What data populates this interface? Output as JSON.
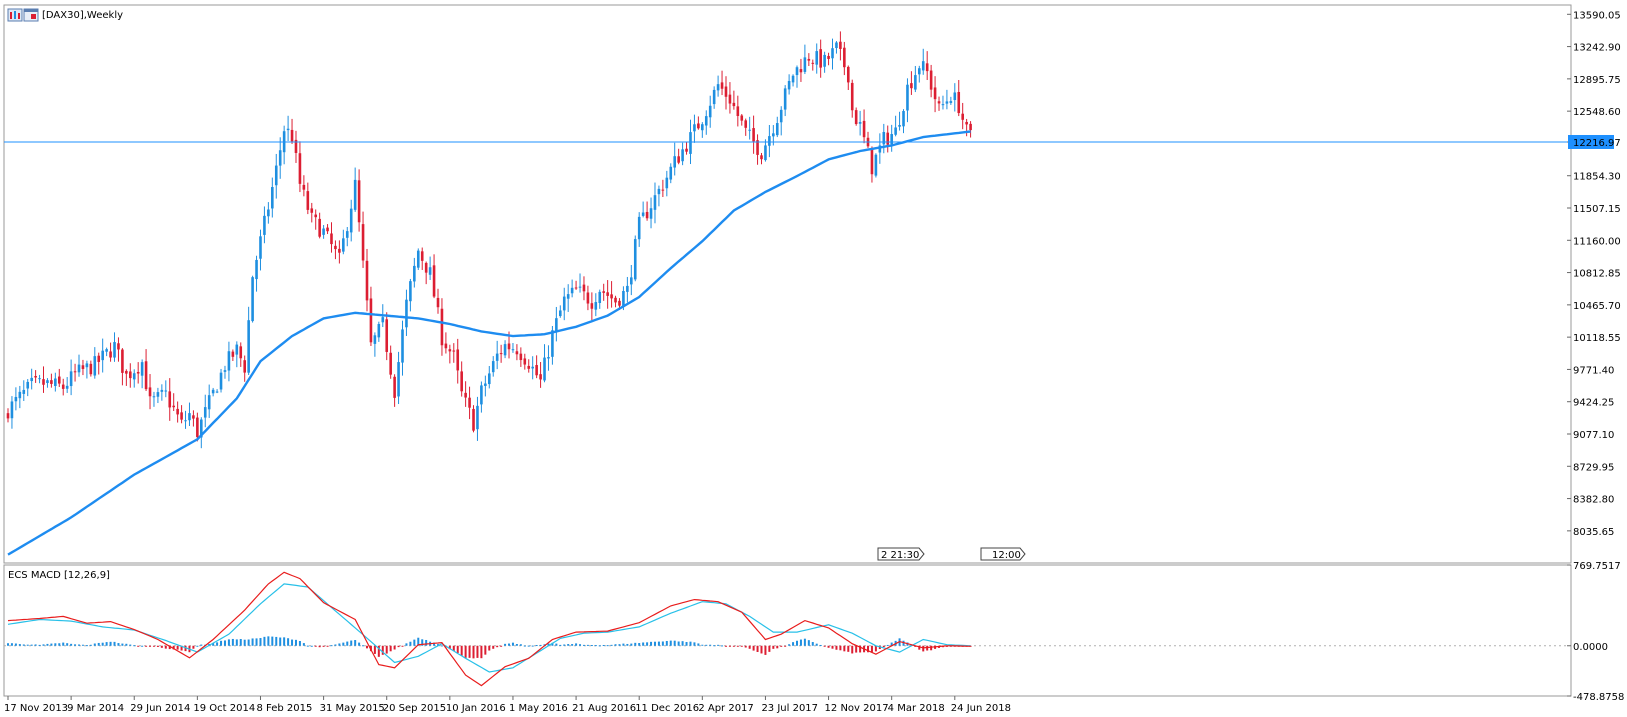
{
  "main_panel": {
    "title": "[DAX30],Weekly",
    "current_price_label": "12216.97",
    "time_tags": [
      "2 21:30",
      "12:00"
    ]
  },
  "indicator_panel": {
    "title": "ECS MACD [12,26,9]"
  },
  "colors": {
    "bull": "#1e8fe0",
    "bear": "#dc1e32",
    "moving_average": "#1e8cf0",
    "macd_line": "#e81c1c",
    "signal_line": "#28c0e8",
    "price_line": "#1e90ff",
    "frame": "#9a9a9a",
    "background": "#ffffff"
  },
  "chart_data": [
    {
      "type": "candlestick",
      "title": "[DAX30],Weekly",
      "ylim": [
        7690,
        13690
      ],
      "yticks": [
        "13590.05",
        "13242.90",
        "12895.75",
        "12548.60",
        "12216.97",
        "11854.30",
        "11507.15",
        "11160.00",
        "10812.85",
        "10465.70",
        "10118.55",
        "9771.40",
        "9424.25",
        "9077.10",
        "8729.95",
        "8382.80",
        "8035.65"
      ],
      "ytick_values": [
        13590.05,
        13242.9,
        12895.75,
        12548.6,
        12216.97,
        11854.3,
        11507.15,
        11160.0,
        10812.85,
        10465.7,
        10118.55,
        9771.4,
        9424.25,
        9077.1,
        8729.95,
        8382.8,
        8035.65
      ],
      "xticks": [
        "17 Nov 2013",
        "9 Mar 2014",
        "29 Jun 2014",
        "19 Oct 2014",
        "8 Feb 2015",
        "31 May 2015",
        "20 Sep 2015",
        "10 Jan 2016",
        "1 May 2016",
        "21 Aug 2016",
        "11 Dec 2016",
        "2 Apr 2017",
        "23 Jul 2017",
        "12 Nov 2017",
        "4 Mar 2018",
        "24 Jun 2018"
      ],
      "xtick_bar_index": [
        0,
        16,
        32,
        48,
        64,
        80,
        96,
        112,
        128,
        144,
        160,
        176,
        192,
        208,
        224,
        240
      ],
      "price_line": 12216.97,
      "close_path": [
        [
          0,
          9340
        ],
        [
          6,
          9600
        ],
        [
          9,
          9620
        ],
        [
          14,
          9580
        ],
        [
          17,
          9720
        ],
        [
          22,
          9820
        ],
        [
          27,
          10020
        ],
        [
          30,
          9700
        ],
        [
          34,
          9850
        ],
        [
          36,
          9410
        ],
        [
          40,
          9500
        ],
        [
          44,
          9180
        ],
        [
          46,
          9290
        ],
        [
          48,
          9100
        ],
        [
          52,
          9510
        ],
        [
          55,
          9820
        ],
        [
          58,
          9980
        ],
        [
          60,
          9800
        ],
        [
          62,
          10780
        ],
        [
          66,
          11520
        ],
        [
          68,
          11920
        ],
        [
          70,
          12360
        ],
        [
          72,
          12280
        ],
        [
          74,
          11760
        ],
        [
          77,
          11380
        ],
        [
          80,
          11250
        ],
        [
          84,
          10940
        ],
        [
          88,
          11750
        ],
        [
          92,
          10020
        ],
        [
          95,
          10250
        ],
        [
          98,
          9550
        ],
        [
          101,
          10470
        ],
        [
          104,
          11050
        ],
        [
          107,
          10800
        ],
        [
          110,
          10120
        ],
        [
          113,
          9900
        ],
        [
          115,
          9500
        ],
        [
          118,
          9200
        ],
        [
          120,
          9530
        ],
        [
          124,
          9920
        ],
        [
          126,
          10030
        ],
        [
          129,
          10000
        ],
        [
          132,
          9850
        ],
        [
          135,
          9640
        ],
        [
          138,
          10150
        ],
        [
          141,
          10510
        ],
        [
          144,
          10620
        ],
        [
          148,
          10510
        ],
        [
          150,
          10640
        ],
        [
          154,
          10510
        ],
        [
          157,
          10620
        ],
        [
          160,
          11320
        ],
        [
          164,
          11620
        ],
        [
          166,
          11760
        ],
        [
          169,
          12000
        ],
        [
          173,
          12260
        ],
        [
          176,
          12480
        ],
        [
          180,
          12830
        ],
        [
          183,
          12680
        ],
        [
          187,
          12320
        ],
        [
          191,
          12110
        ],
        [
          195,
          12490
        ],
        [
          199,
          12950
        ],
        [
          203,
          13140
        ],
        [
          207,
          13070
        ],
        [
          210,
          13220
        ],
        [
          213,
          12950
        ],
        [
          214,
          12560
        ],
        [
          216,
          12380
        ],
        [
          219,
          11950
        ],
        [
          222,
          12240
        ],
        [
          225,
          12330
        ],
        [
          228,
          12800
        ],
        [
          231,
          13050
        ],
        [
          233,
          12960
        ],
        [
          236,
          12560
        ],
        [
          239,
          12730
        ],
        [
          241,
          12610
        ],
        [
          243,
          12320
        ],
        [
          244,
          12280
        ]
      ],
      "n_bars": 245,
      "series": [
        {
          "name": "",
          "kind": "moving_average",
          "path": [
            [
              0,
              7780
            ],
            [
              16,
              8180
            ],
            [
              32,
              8640
            ],
            [
              48,
              9020
            ],
            [
              58,
              9460
            ],
            [
              64,
              9860
            ],
            [
              72,
              10130
            ],
            [
              80,
              10320
            ],
            [
              88,
              10380
            ],
            [
              96,
              10350
            ],
            [
              104,
              10320
            ],
            [
              112,
              10260
            ],
            [
              120,
              10180
            ],
            [
              128,
              10130
            ],
            [
              136,
              10150
            ],
            [
              144,
              10230
            ],
            [
              152,
              10350
            ],
            [
              160,
              10550
            ],
            [
              168,
              10860
            ],
            [
              176,
              11150
            ],
            [
              184,
              11480
            ],
            [
              192,
              11680
            ],
            [
              200,
              11850
            ],
            [
              208,
              12030
            ],
            [
              216,
              12120
            ],
            [
              224,
              12180
            ],
            [
              232,
              12270
            ],
            [
              240,
              12310
            ],
            [
              244,
              12330
            ]
          ]
        }
      ]
    },
    {
      "type": "macd",
      "title": "ECS MACD [12,26,9]",
      "ylim": [
        -478.8758,
        769.7517
      ],
      "yticks": [
        "769.7517",
        "0.0000",
        "-478.8758"
      ],
      "ytick_values": [
        769.7517,
        0,
        -478.8758
      ],
      "n_bars": 245,
      "series": [
        {
          "name": "",
          "kind": "macd",
          "path": [
            [
              0,
              240
            ],
            [
              8,
              260
            ],
            [
              14,
              280
            ],
            [
              20,
              215
            ],
            [
              26,
              230
            ],
            [
              32,
              155
            ],
            [
              38,
              60
            ],
            [
              46,
              -115
            ],
            [
              52,
              60
            ],
            [
              60,
              340
            ],
            [
              66,
              590
            ],
            [
              70,
              700
            ],
            [
              74,
              640
            ],
            [
              80,
              410
            ],
            [
              88,
              250
            ],
            [
              94,
              -180
            ],
            [
              98,
              -210
            ],
            [
              104,
              10
            ],
            [
              110,
              30
            ],
            [
              116,
              -280
            ],
            [
              120,
              -380
            ],
            [
              126,
              -200
            ],
            [
              132,
              -120
            ],
            [
              138,
              60
            ],
            [
              144,
              130
            ],
            [
              152,
              140
            ],
            [
              160,
              220
            ],
            [
              168,
              380
            ],
            [
              174,
              440
            ],
            [
              180,
              420
            ],
            [
              186,
              320
            ],
            [
              192,
              60
            ],
            [
              196,
              110
            ],
            [
              202,
              240
            ],
            [
              208,
              170
            ],
            [
              214,
              20
            ],
            [
              220,
              -80
            ],
            [
              226,
              40
            ],
            [
              232,
              -20
            ],
            [
              238,
              0
            ],
            [
              244,
              -5
            ]
          ]
        },
        {
          "name": "",
          "kind": "signal",
          "path": [
            [
              0,
              205
            ],
            [
              8,
              250
            ],
            [
              16,
              235
            ],
            [
              24,
              180
            ],
            [
              32,
              150
            ],
            [
              40,
              50
            ],
            [
              48,
              -60
            ],
            [
              56,
              110
            ],
            [
              64,
              400
            ],
            [
              70,
              590
            ],
            [
              76,
              560
            ],
            [
              84,
              300
            ],
            [
              92,
              40
            ],
            [
              98,
              -160
            ],
            [
              104,
              -100
            ],
            [
              110,
              20
            ],
            [
              116,
              -120
            ],
            [
              122,
              -250
            ],
            [
              128,
              -210
            ],
            [
              134,
              -70
            ],
            [
              140,
              70
            ],
            [
              146,
              120
            ],
            [
              152,
              130
            ],
            [
              160,
              180
            ],
            [
              168,
              310
            ],
            [
              176,
              420
            ],
            [
              182,
              400
            ],
            [
              188,
              280
            ],
            [
              194,
              130
            ],
            [
              200,
              130
            ],
            [
              208,
              200
            ],
            [
              214,
              120
            ],
            [
              220,
              0
            ],
            [
              226,
              -60
            ],
            [
              232,
              60
            ],
            [
              238,
              10
            ],
            [
              244,
              0
            ]
          ]
        }
      ]
    }
  ]
}
